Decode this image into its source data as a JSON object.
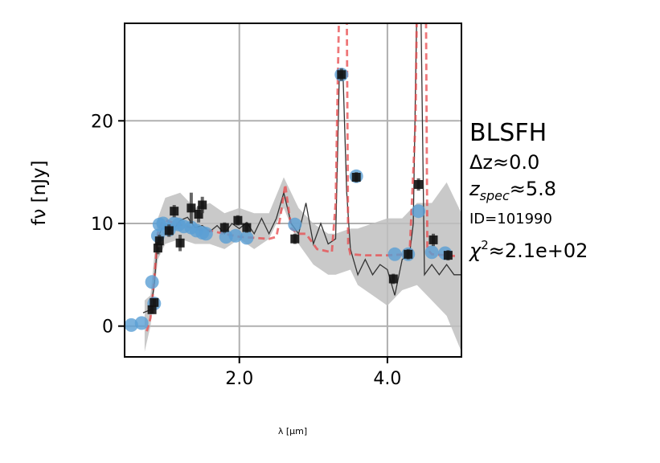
{
  "chart_data": {
    "type": "scatter",
    "xlabel": "λ [μm]",
    "ylabel": "fν [nJy]",
    "xlim": [
      0.45,
      5.0
    ],
    "ylim": [
      -3,
      29.5
    ],
    "xticks": [
      {
        "value": 2.0,
        "label": "2.0"
      },
      {
        "value": 4.0,
        "label": "4.0"
      }
    ],
    "yticks": [
      {
        "value": 0,
        "label": "0"
      },
      {
        "value": 10,
        "label": "10"
      },
      {
        "value": 20,
        "label": "20"
      }
    ],
    "grid": true,
    "annotations": {
      "name": "BLSFH",
      "dz": "Δz≈0.0",
      "zspec_sym": "z",
      "zspec_sub": "spec",
      "zspec_val": "≈5.8",
      "id": "ID=101990",
      "chi_sym": "χ",
      "chi_sup": "2",
      "chi_val": "≈2.1e+02"
    },
    "colors": {
      "observed": "#5a9fd4",
      "model_points": "#111111",
      "model_line": "#333333",
      "band": "#c0c0c0",
      "fit": "#e8484b",
      "grid": "#b0b0b0"
    },
    "series": [
      {
        "name": "observed",
        "kind": "points",
        "x": [
          0.54,
          0.68,
          0.82,
          0.85,
          0.9,
          0.92,
          0.97,
          1.05,
          1.12,
          1.18,
          1.25,
          1.35,
          1.42,
          1.5,
          1.55,
          1.82,
          1.95,
          2.1,
          2.75,
          3.38,
          3.58,
          4.1,
          4.28,
          4.42,
          4.6,
          4.78
        ],
        "y": [
          0.1,
          0.3,
          4.3,
          2.2,
          8.8,
          9.9,
          10.0,
          9.4,
          10.0,
          9.9,
          9.7,
          9.6,
          9.3,
          9.1,
          9.0,
          8.7,
          8.8,
          8.6,
          9.9,
          24.5,
          14.6,
          7.0,
          7.0,
          11.2,
          7.2,
          7.1
        ]
      },
      {
        "name": "model photometry",
        "kind": "squares",
        "x": [
          0.82,
          0.85,
          0.9,
          0.92,
          1.05,
          1.12,
          1.2,
          1.35,
          1.45,
          1.5,
          1.8,
          1.98,
          2.1,
          2.75,
          3.38,
          3.58,
          4.08,
          4.28,
          4.42,
          4.62,
          4.82
        ],
        "y": [
          1.6,
          2.3,
          7.6,
          8.3,
          9.3,
          11.2,
          8.1,
          11.5,
          10.9,
          11.8,
          9.6,
          10.3,
          9.6,
          8.5,
          24.5,
          14.5,
          4.6,
          7.0,
          13.8,
          8.4,
          6.9
        ],
        "yerr": [
          0.4,
          0.4,
          0.6,
          0.6,
          0.6,
          0.6,
          0.8,
          1.5,
          0.8,
          0.8,
          0.5,
          0.5,
          0.5,
          0.5,
          0.6,
          0.5,
          0.5,
          0.5,
          0.6,
          0.6,
          0.5
        ]
      },
      {
        "name": "model spectrum",
        "kind": "line",
        "x": [
          0.7,
          0.8,
          0.85,
          0.9,
          0.95,
          1.0,
          1.1,
          1.2,
          1.3,
          1.4,
          1.5,
          1.6,
          1.7,
          1.8,
          1.9,
          2.0,
          2.1,
          2.2,
          2.3,
          2.4,
          2.5,
          2.6,
          2.7,
          2.8,
          2.9,
          3.0,
          3.1,
          3.2,
          3.3,
          3.35,
          3.4,
          3.45,
          3.5,
          3.6,
          3.7,
          3.8,
          3.9,
          4.0,
          4.1,
          4.2,
          4.3,
          4.35,
          4.4,
          4.45,
          4.5,
          4.6,
          4.7,
          4.8,
          4.9,
          5.0
        ],
        "y": [
          1.3,
          1.6,
          4.0,
          8.5,
          9.5,
          9.5,
          9.3,
          10.3,
          10.6,
          9.6,
          9.8,
          9.2,
          9.8,
          9.0,
          10.0,
          9.5,
          10.1,
          9.0,
          10.5,
          9.0,
          10.5,
          13.0,
          10.0,
          9.0,
          12.0,
          8.0,
          10.0,
          8.0,
          8.5,
          24.5,
          24.5,
          13.0,
          7.5,
          5.0,
          6.5,
          5.0,
          6.0,
          5.5,
          3.0,
          6.5,
          7.0,
          10.0,
          32.0,
          32.0,
          5.0,
          6.0,
          5.0,
          6.0,
          5.0,
          5.0
        ]
      },
      {
        "name": "uncertainty band",
        "kind": "band",
        "x": [
          0.72,
          0.8,
          0.9,
          1.0,
          1.2,
          1.4,
          1.6,
          1.8,
          2.0,
          2.2,
          2.4,
          2.6,
          2.8,
          3.0,
          3.2,
          3.3,
          3.5,
          3.6,
          3.8,
          4.0,
          4.2,
          4.4,
          4.6,
          4.8,
          5.0
        ],
        "lo": [
          -2.5,
          0.0,
          6.5,
          8.0,
          8.5,
          8.0,
          8.0,
          7.5,
          8.5,
          7.5,
          8.5,
          11.5,
          8.0,
          6.0,
          5.0,
          5.0,
          5.5,
          4.0,
          3.0,
          2.0,
          3.5,
          4.0,
          2.5,
          1.0,
          -2.5
        ],
        "hi": [
          2.5,
          3.0,
          10.5,
          12.5,
          13.0,
          11.5,
          12.0,
          11.0,
          11.5,
          11.0,
          11.0,
          14.5,
          11.5,
          10.0,
          9.0,
          9.0,
          9.5,
          9.5,
          10.0,
          10.5,
          10.5,
          12.0,
          12.0,
          14.0,
          11.0
        ]
      },
      {
        "name": "best fit",
        "kind": "dashed",
        "x": [
          0.75,
          0.8,
          0.85,
          0.9,
          0.95,
          1.0,
          1.2,
          1.4,
          1.6,
          1.8,
          2.0,
          2.2,
          2.4,
          2.5,
          2.55,
          2.62,
          2.7,
          2.8,
          2.9,
          3.05,
          3.25,
          3.3,
          3.33,
          3.35,
          3.45,
          3.47,
          3.5,
          3.7,
          4.0,
          4.3,
          4.38,
          4.4,
          4.52,
          4.54,
          4.6,
          4.8,
          4.95
        ],
        "y": [
          -0.5,
          0.8,
          4.5,
          9.0,
          10.0,
          10.3,
          9.9,
          9.5,
          9.3,
          9.0,
          8.7,
          8.6,
          8.5,
          8.7,
          10.5,
          13.8,
          9.5,
          9.0,
          9.0,
          7.5,
          7.2,
          12.0,
          24.0,
          32.0,
          32.0,
          8.0,
          7.0,
          6.9,
          6.9,
          7.0,
          20.0,
          32.0,
          32.0,
          7.5,
          7.0,
          6.9,
          6.8
        ]
      }
    ]
  }
}
